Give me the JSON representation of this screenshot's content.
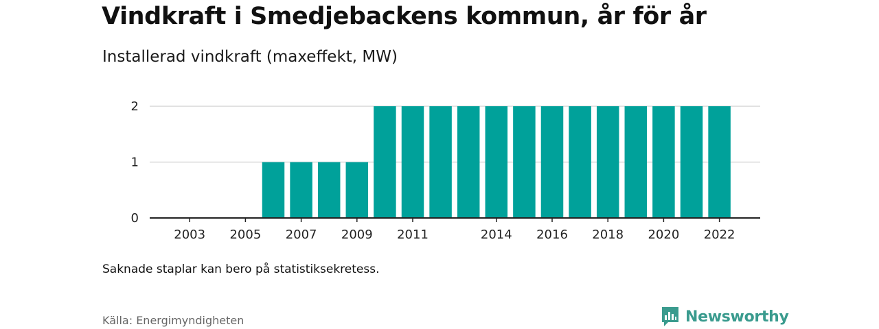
{
  "title": "Vindkraft i Smedjebackens kommun, år för år",
  "subtitle": "Installerad vindkraft (maxeffekt, MW)",
  "note": "Saknade staplar kan bero på statistiksekretess.",
  "source": "Källa: Energimyndigheten",
  "brand": {
    "name": "Newsworthy",
    "icon": "newsworthy-bar-chart-logo-icon"
  },
  "colors": {
    "bar": "#00a19a",
    "grid": "#d9d9d9",
    "axis": "#222222",
    "brand": "#3a9b8e"
  },
  "chart_data": {
    "type": "bar",
    "categories": [
      2002,
      2003,
      2004,
      2005,
      2006,
      2007,
      2008,
      2009,
      2010,
      2011,
      2012,
      2013,
      2014,
      2015,
      2016,
      2017,
      2018,
      2019,
      2020,
      2021,
      2022
    ],
    "values": [
      0,
      0,
      0,
      0,
      1,
      1,
      1,
      1,
      2,
      2,
      2,
      2,
      2,
      2,
      2,
      2,
      2,
      2,
      2,
      2,
      2
    ],
    "x_tick_labels": [
      "2003",
      "2005",
      "2007",
      "2009",
      "2011",
      "2014",
      "2016",
      "2018",
      "2020",
      "2022"
    ],
    "y_ticks": [
      0,
      1,
      2
    ],
    "ylim": [
      0,
      2
    ],
    "title": "Vindkraft i Smedjebackens kommun, år för år",
    "ylabel": "Installerad vindkraft (maxeffekt, MW)",
    "xlabel": "",
    "grid": true,
    "legend": "none"
  }
}
